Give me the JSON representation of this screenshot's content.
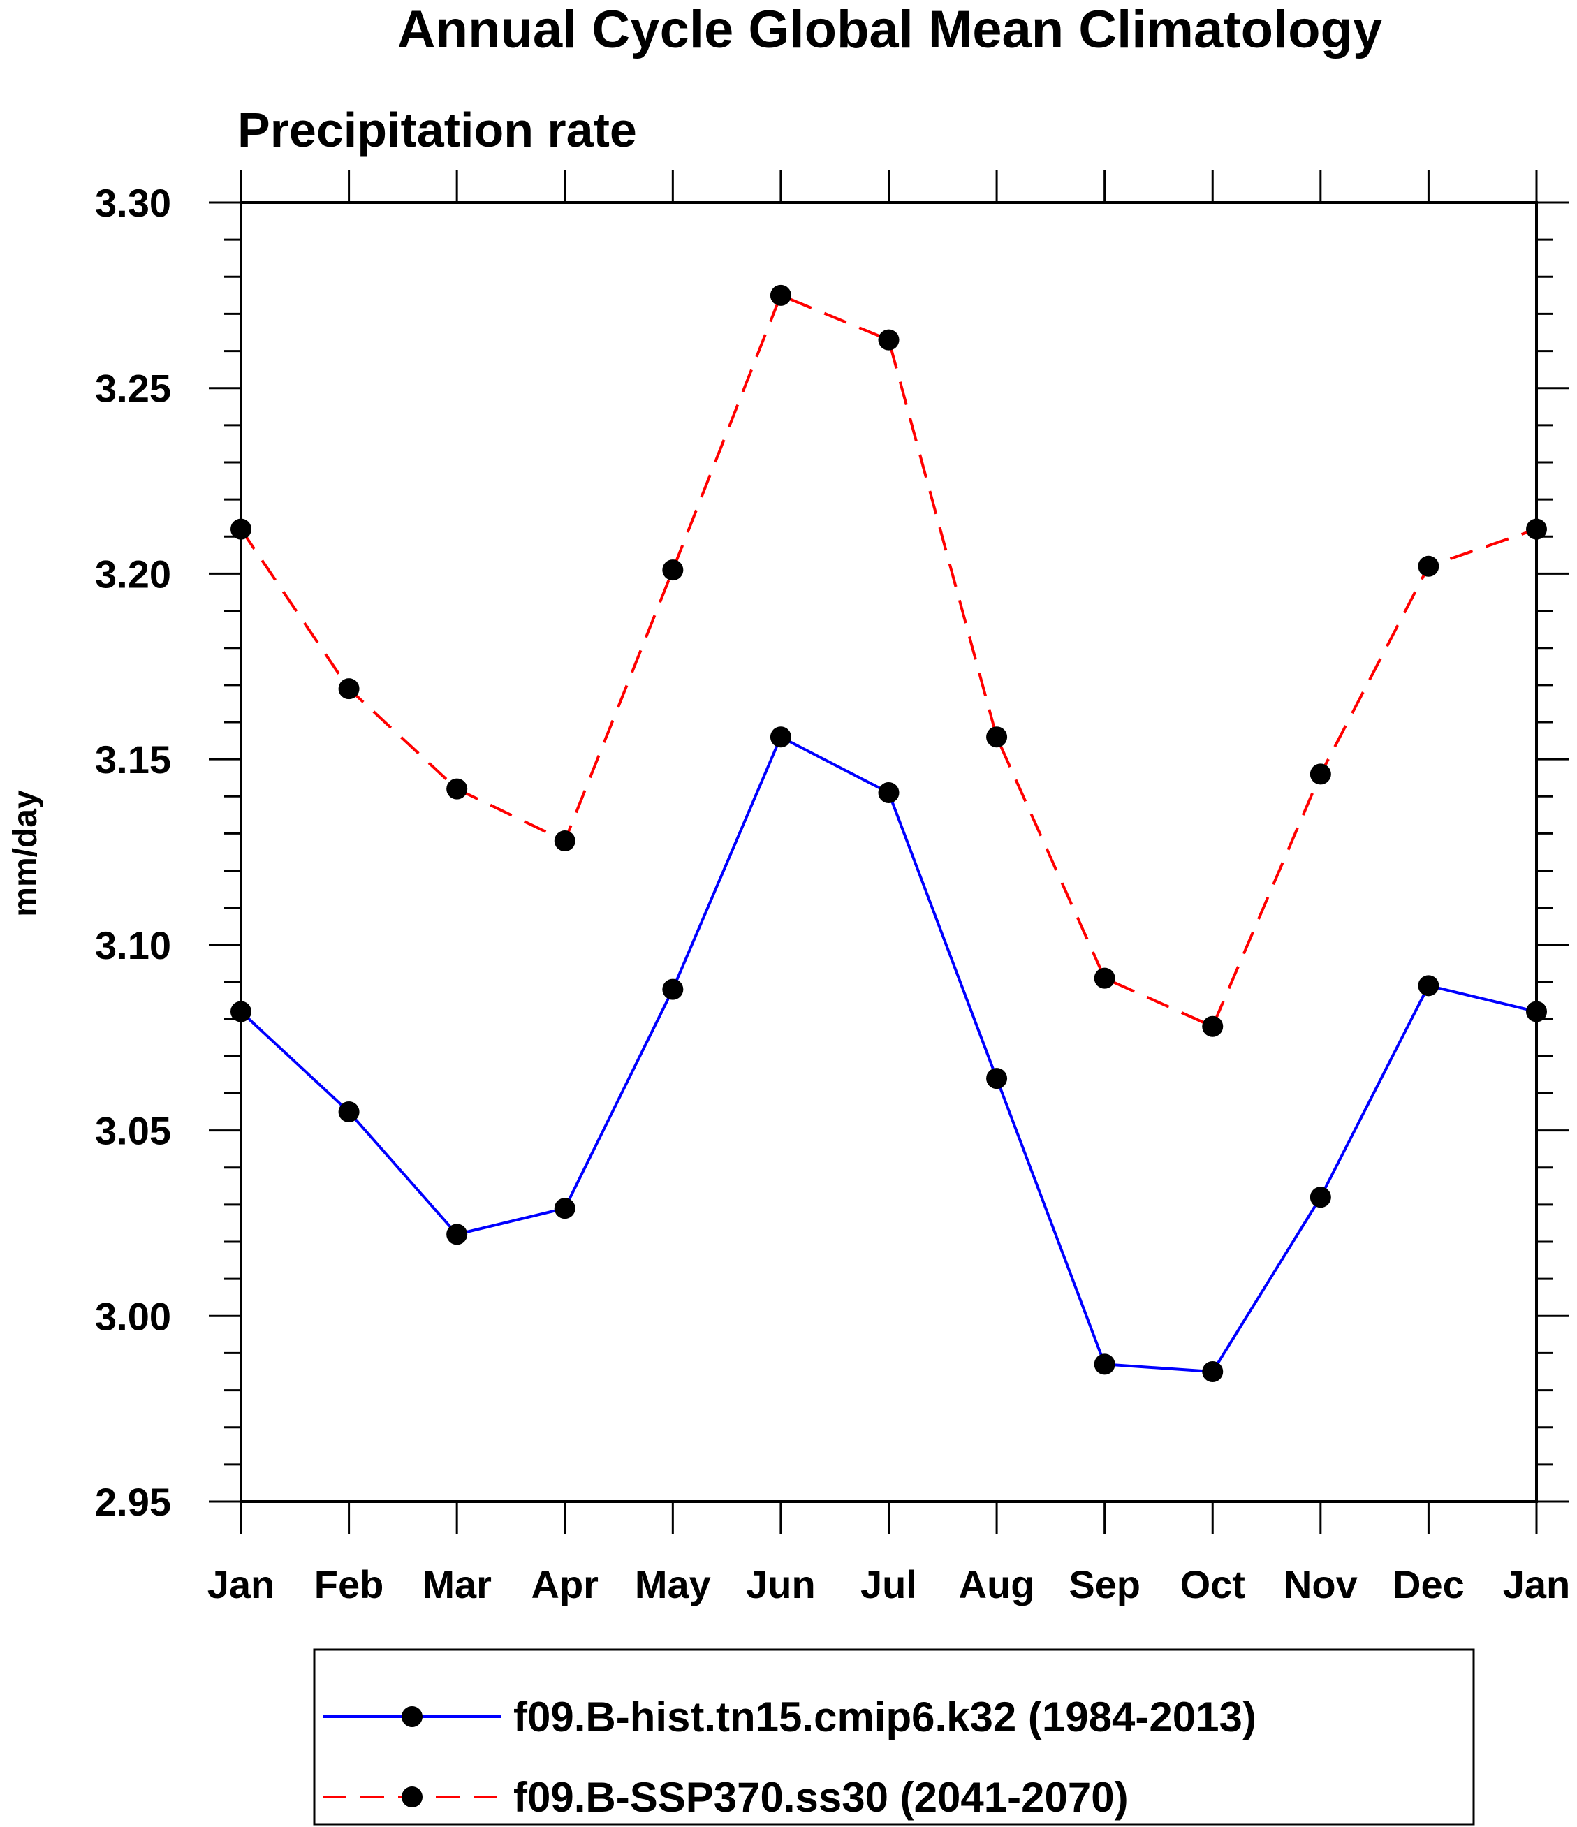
{
  "chart_data": {
    "type": "line",
    "title": "Annual Cycle Global Mean Climatology",
    "subtitle": "Precipitation rate",
    "xlabel": "",
    "ylabel": "mm/day",
    "categories": [
      "Jan",
      "Feb",
      "Mar",
      "Apr",
      "May",
      "Jun",
      "Jul",
      "Aug",
      "Sep",
      "Oct",
      "Nov",
      "Dec",
      "Jan"
    ],
    "ylim": [
      2.95,
      3.3
    ],
    "yticks": [
      "2.95",
      "3.00",
      "3.05",
      "3.10",
      "3.15",
      "3.20",
      "3.25",
      "3.30"
    ],
    "grid": false,
    "legend_position": "bottom",
    "series": [
      {
        "name": "f09.B-hist.tn15.cmip6.k32 (1984-2013)",
        "color": "#0000ff",
        "dash": "solid",
        "marker": "filled-circle",
        "values": [
          3.082,
          3.055,
          3.022,
          3.029,
          3.088,
          3.156,
          3.141,
          3.064,
          2.987,
          2.985,
          3.032,
          3.089,
          3.082
        ]
      },
      {
        "name": "f09.B-SSP370.ss30 (2041-2070)",
        "color": "#ff0000",
        "dash": "dashed",
        "marker": "filled-circle",
        "values": [
          3.212,
          3.169,
          3.142,
          3.128,
          3.201,
          3.275,
          3.263,
          3.156,
          3.091,
          3.078,
          3.146,
          3.202,
          3.212
        ]
      }
    ]
  }
}
